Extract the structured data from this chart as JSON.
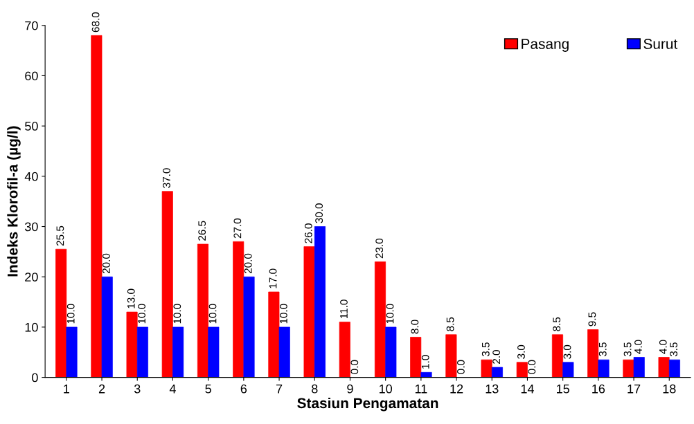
{
  "chart_data": {
    "type": "bar",
    "xlabel": "Stasiun Pengamatan",
    "ylabel": "Indeks Klorofil-a (µg/l)",
    "categories": [
      "1",
      "2",
      "3",
      "4",
      "5",
      "6",
      "7",
      "8",
      "9",
      "10",
      "11",
      "12",
      "13",
      "14",
      "15",
      "16",
      "17",
      "18"
    ],
    "series": [
      {
        "name": "Pasang",
        "color": "#ff0000",
        "values": [
          25.5,
          68,
          13,
          37,
          26.5,
          27,
          17,
          26,
          11,
          23,
          8,
          8.5,
          3.5,
          3,
          8.5,
          9.5,
          3.5,
          4
        ],
        "value_labels": [
          "25.5",
          "68.0",
          "13.0",
          "37.0",
          "26.5",
          "27.0",
          "17.0",
          "26.0",
          "11.0",
          "23.0",
          "8.0",
          "8.5",
          "3.5",
          "3.0",
          "8.5",
          "9.5",
          "3.5",
          "4.0"
        ]
      },
      {
        "name": "Surut",
        "color": "#0000ff",
        "values": [
          10,
          20,
          10,
          10,
          10,
          20,
          10,
          30,
          0,
          10,
          1,
          0,
          2,
          0,
          3,
          3.5,
          4,
          3.5
        ],
        "value_labels": [
          "10.0",
          "20.0",
          "10.0",
          "10.0",
          "10.0",
          "20.0",
          "10.0",
          "30.0",
          "0.0",
          "10.0",
          "1.0",
          "0.0",
          "2.0",
          "0.0",
          "3.0",
          "3.5",
          "4.0",
          "3.5"
        ]
      }
    ],
    "ylim": [
      0,
      70
    ],
    "yticks": [
      0,
      10,
      20,
      30,
      40,
      50,
      60,
      70
    ],
    "grid": false,
    "legend": "top right"
  }
}
